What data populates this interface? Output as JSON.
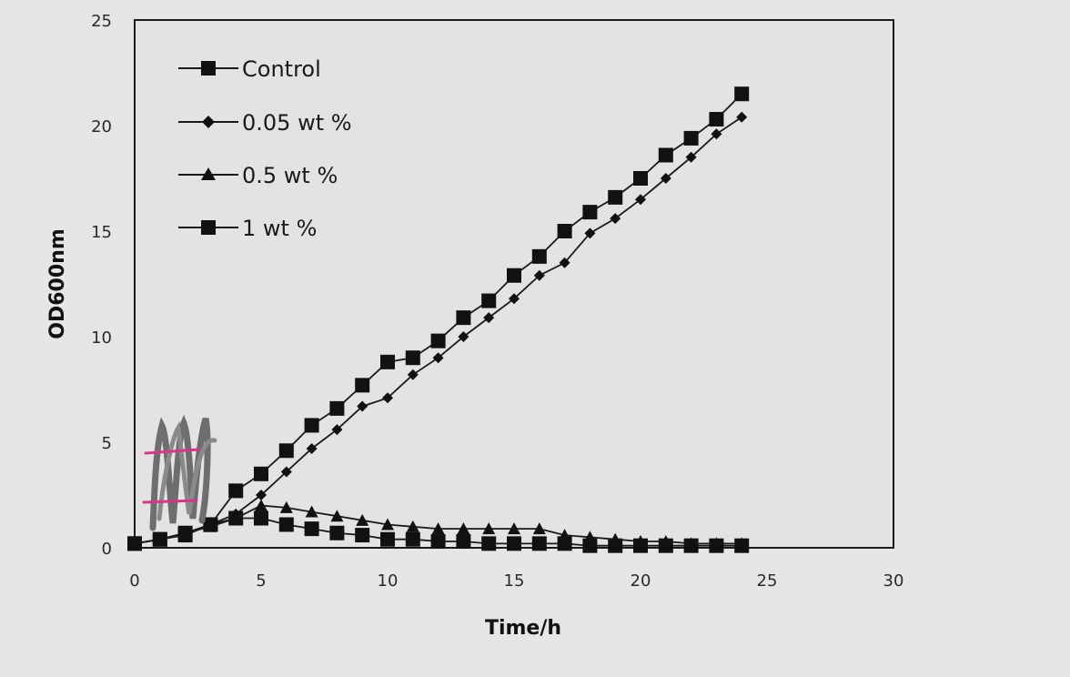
{
  "chart_data": {
    "type": "line",
    "title": "",
    "xlabel": "Time/h",
    "ylabel": "OD600nm",
    "xlim": [
      0,
      30
    ],
    "ylim": [
      0,
      25
    ],
    "xticks": [
      0,
      5,
      10,
      15,
      20,
      25,
      30
    ],
    "yticks": [
      0,
      5,
      10,
      15,
      20,
      25
    ],
    "grid": false,
    "legend_position": "top-left",
    "x": [
      0,
      1,
      2,
      3,
      4,
      5,
      6,
      7,
      8,
      9,
      10,
      11,
      12,
      13,
      14,
      15,
      16,
      17,
      18,
      19,
      20,
      21,
      22,
      23,
      24
    ],
    "series": [
      {
        "name": "Control",
        "marker": "square",
        "values": [
          0.2,
          0.4,
          0.6,
          1.1,
          2.7,
          3.5,
          4.6,
          5.8,
          6.6,
          7.7,
          8.8,
          9.0,
          9.8,
          10.9,
          11.7,
          12.9,
          13.8,
          15.0,
          15.9,
          16.6,
          17.5,
          18.6,
          19.4,
          20.3,
          21.5
        ]
      },
      {
        "name": "0.05 wt %",
        "marker": "diamond",
        "values": [
          0.2,
          0.4,
          0.7,
          1.1,
          1.6,
          2.5,
          3.6,
          4.7,
          5.6,
          6.7,
          7.1,
          8.2,
          9.0,
          10.0,
          10.9,
          11.8,
          12.9,
          13.5,
          14.9,
          15.6,
          16.5,
          17.5,
          18.5,
          19.6,
          20.4
        ]
      },
      {
        "name": "0.5 wt %",
        "marker": "triangle",
        "values": [
          0.2,
          0.4,
          0.7,
          1.0,
          1.4,
          2.0,
          1.9,
          1.7,
          1.5,
          1.3,
          1.1,
          1.0,
          0.9,
          0.9,
          0.9,
          0.9,
          0.9,
          0.6,
          0.5,
          0.4,
          0.3,
          0.3,
          0.2,
          0.2,
          0.2
        ]
      },
      {
        "name": "1 wt %",
        "marker": "square",
        "values": [
          0.2,
          0.4,
          0.7,
          1.1,
          1.4,
          1.4,
          1.1,
          0.9,
          0.7,
          0.6,
          0.4,
          0.4,
          0.3,
          0.3,
          0.2,
          0.2,
          0.2,
          0.2,
          0.1,
          0.1,
          0.1,
          0.1,
          0.1,
          0.1,
          0.1
        ]
      }
    ]
  }
}
